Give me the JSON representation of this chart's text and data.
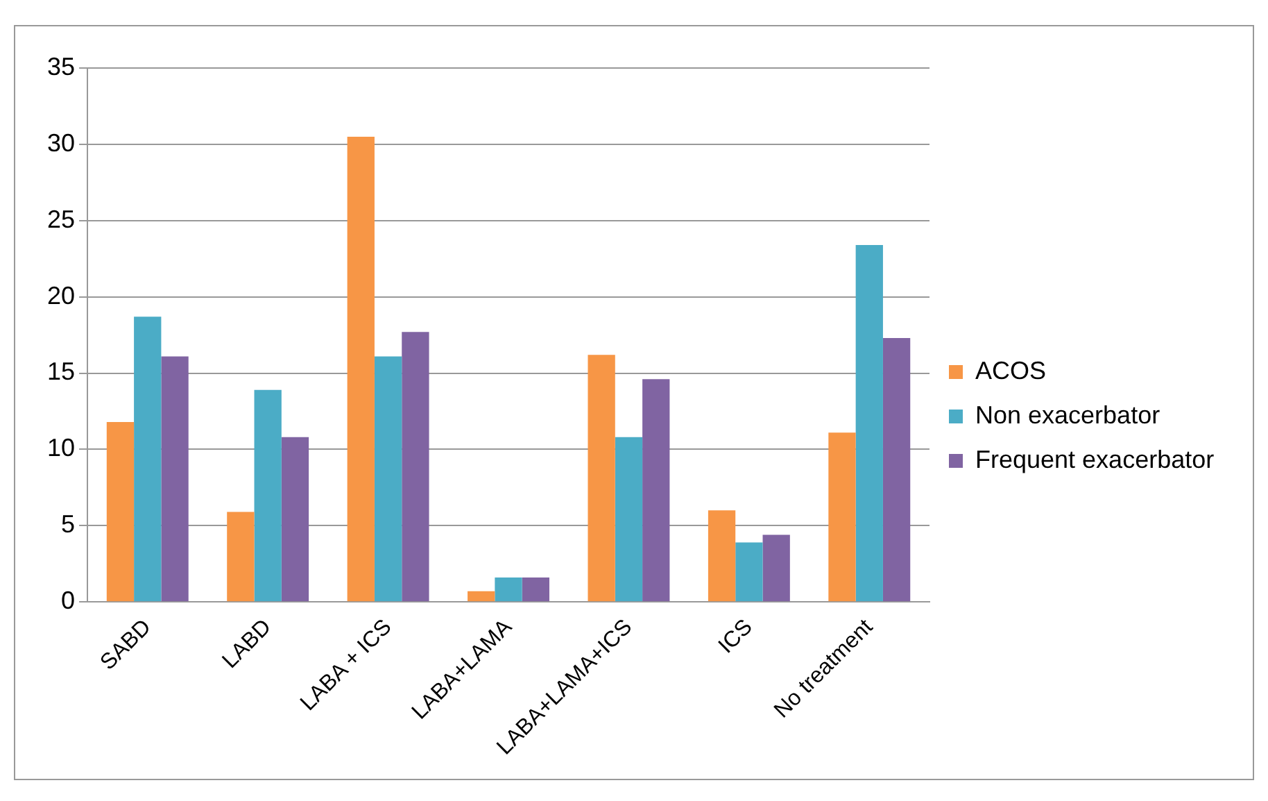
{
  "chart_data": {
    "type": "bar",
    "categories": [
      "SABD",
      "LABD",
      "LABA + ICS",
      "LABA+LAMA",
      "LABA+LAMA+ICS",
      "ICS",
      "No treatment"
    ],
    "series": [
      {
        "name": "ACOS",
        "color": "#f79646",
        "values": [
          11.8,
          5.9,
          30.5,
          0.7,
          16.2,
          6.0,
          11.1
        ]
      },
      {
        "name": "Non exacerbator",
        "color": "#4bacc6",
        "values": [
          18.7,
          13.9,
          16.1,
          1.6,
          10.8,
          3.9,
          23.4
        ]
      },
      {
        "name": "Frequent exacerbator",
        "color": "#8064a2",
        "values": [
          16.1,
          10.8,
          17.7,
          1.6,
          14.6,
          4.4,
          17.3
        ]
      }
    ],
    "ylim": [
      0,
      35
    ],
    "yticks": [
      0,
      5,
      10,
      15,
      20,
      25,
      30,
      35
    ],
    "grid": "y",
    "legend": "right"
  }
}
